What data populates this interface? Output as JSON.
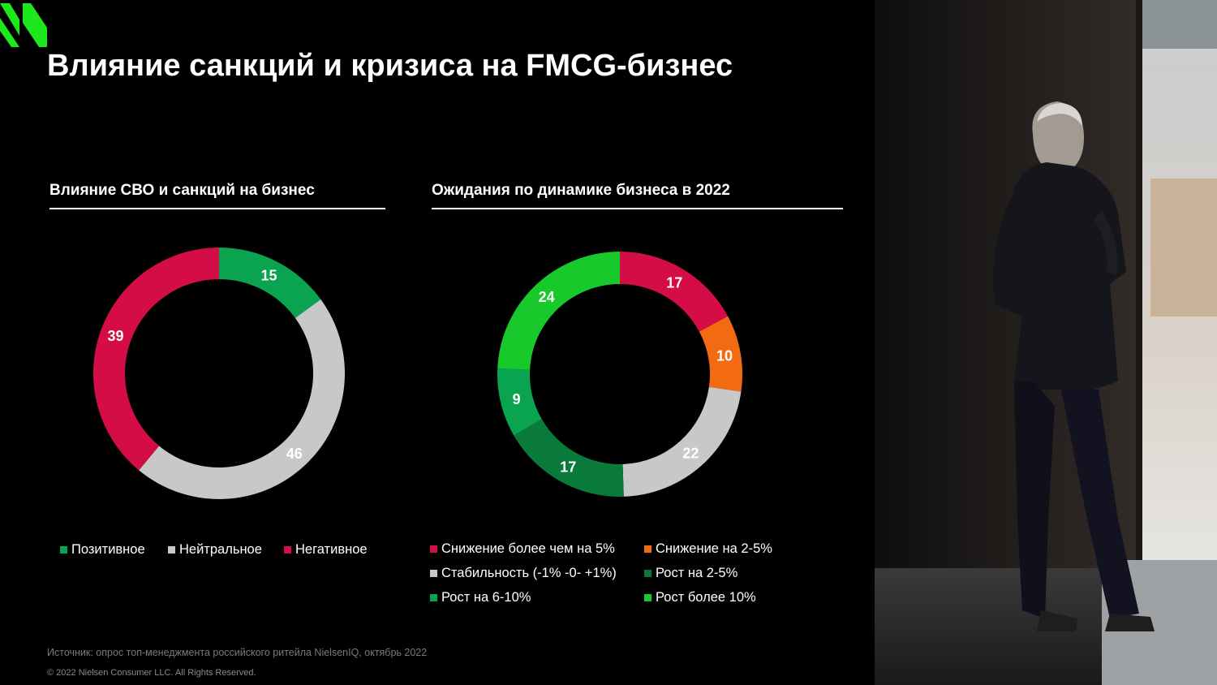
{
  "title": "Влияние санкций и кризиса на FMCG-бизнес",
  "colors": {
    "positive": "#0aa34f",
    "neutral": "#c8c8c8",
    "negative": "#d40d46",
    "decline_5": "#d40d46",
    "decline_2_5": "#f26a12",
    "stability": "#c8c8c8",
    "growth_2_5": "#0a7a3a",
    "growth_6_10": "#0aa34f",
    "growth_10": "#18c92c",
    "logo": "#1de81d"
  },
  "chart_data": [
    {
      "type": "pie",
      "title": "Влияние СВО и санкций на бизнес",
      "categories": [
        "Позитивное",
        "Нейтральное",
        "Негативное"
      ],
      "values": [
        15,
        46,
        39
      ],
      "colors": [
        "#0aa34f",
        "#c8c8c8",
        "#d40d46"
      ],
      "legend": "bottom"
    },
    {
      "type": "pie",
      "title": "Ожидания по динамике бизнеса в 2022",
      "categories": [
        "Снижение более чем на 5%",
        "Снижение на 2-5%",
        "Стабильность (-1% -0- +1%)",
        "Рост на 2-5%",
        "Рост на 6-10%",
        "Рост более 10%"
      ],
      "values": [
        17,
        10,
        22,
        17,
        9,
        24
      ],
      "colors": [
        "#d40d46",
        "#f26a12",
        "#c8c8c8",
        "#0a7a3a",
        "#0aa34f",
        "#18c92c"
      ],
      "legend": "bottom"
    }
  ],
  "footer": {
    "source": "Источник: опрос топ-менеджмента российского ритейла NielsenIQ, октябрь 2022",
    "copyright": "© 2022 Nielsen Consumer LLC. All Rights Reserved."
  }
}
